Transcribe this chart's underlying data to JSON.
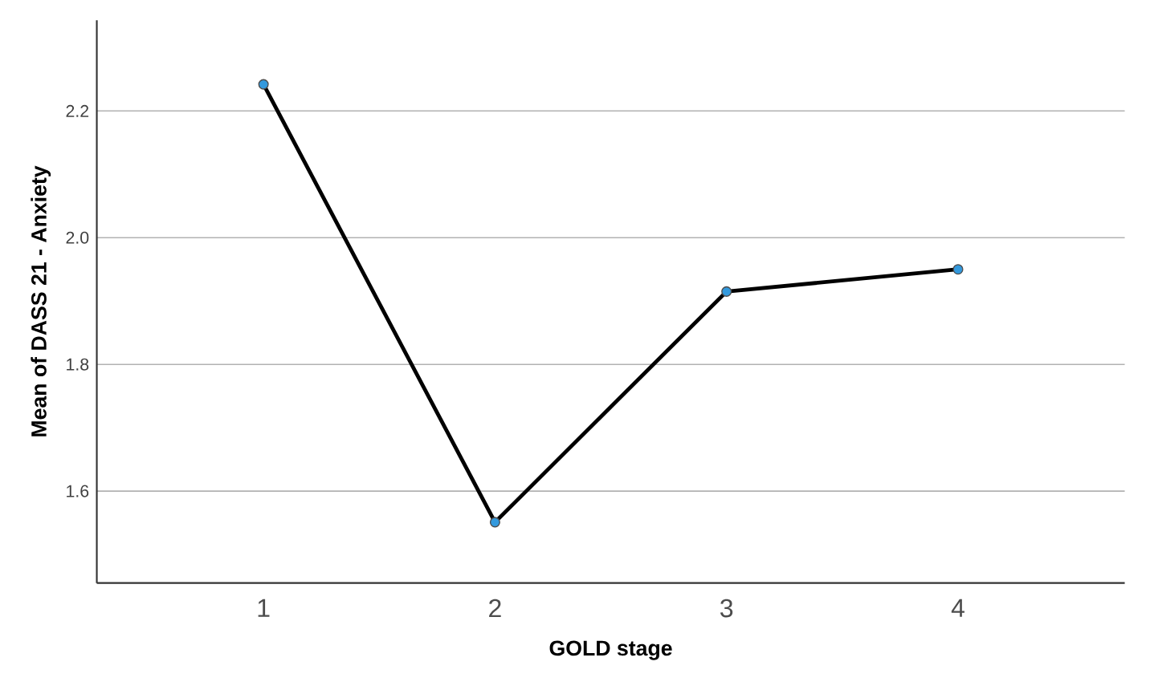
{
  "chart_data": {
    "type": "line",
    "xlabel": "GOLD stage",
    "ylabel": "Mean of DASS 21 - Anxiety",
    "categories": [
      "1",
      "2",
      "3",
      "4"
    ],
    "series": [
      {
        "color": "#000000",
        "values": [
          2.242,
          1.551,
          1.915,
          1.95
        ]
      }
    ],
    "ylim": [
      1.455,
      2.343
    ],
    "yticks": [
      1.6,
      1.8,
      {
        "value": 2,
        "label": "2.0"
      },
      2.2
    ],
    "grid": "y",
    "marker": "circle",
    "line_style": "solid"
  }
}
